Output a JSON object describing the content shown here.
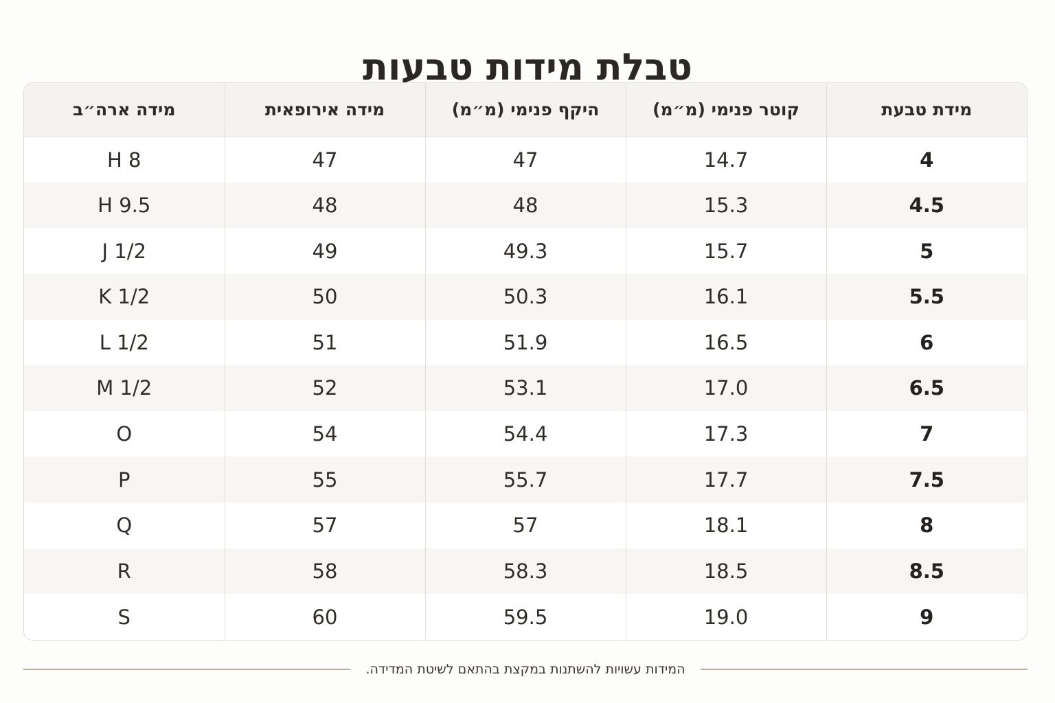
{
  "title": "טבלת מידות טבעות",
  "columns": [
    "מידת טבעת",
    "קוטר פנימי (מ״מ)",
    "היקף פנימי (מ״מ)",
    "מידה אירופאית",
    "מידה ארה״ב"
  ],
  "rows": [
    [
      "4",
      "14.7",
      "47",
      "47",
      "H 8"
    ],
    [
      "4.5",
      "15.3",
      "48",
      "48",
      "H 9.5"
    ],
    [
      "5",
      "15.7",
      "49.3",
      "49",
      "J 1/2"
    ],
    [
      "5.5",
      "16.1",
      "50.3",
      "50",
      "K 1/2"
    ],
    [
      "6",
      "16.5",
      "51.9",
      "51",
      "L 1/2"
    ],
    [
      "6.5",
      "17.0",
      "53.1",
      "52",
      "M 1/2"
    ],
    [
      "7",
      "17.3",
      "54.4",
      "54",
      "O"
    ],
    [
      "7.5",
      "17.7",
      "55.7",
      "55",
      "P"
    ],
    [
      "8",
      "18.1",
      "57",
      "57",
      "Q"
    ],
    [
      "8.5",
      "18.5",
      "58.3",
      "58",
      "R"
    ],
    [
      "9",
      "19.0",
      "59.5",
      "60",
      "S"
    ]
  ],
  "footer_note": "המידות עשויות להשתנות במקצת בהתאם לשיטת המדידה.",
  "colors": {
    "header_bg": "#f5f3ef",
    "stripe_bg": "#f7f6f3",
    "border": "#e2ddd6",
    "rule": "#b9ada0"
  }
}
